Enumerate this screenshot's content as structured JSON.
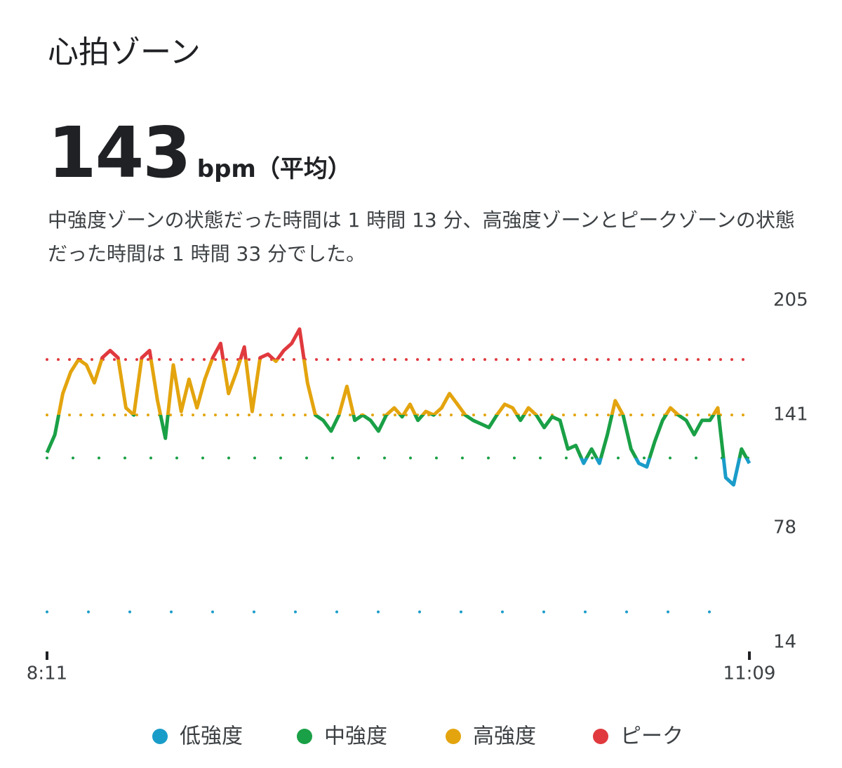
{
  "header": {
    "title": "心拍ゾーン",
    "value": "143",
    "unit": "bpm",
    "qualifier": "（平均）",
    "description": "中強度ゾーンの状態だった時間は 1 時間 13 分、高強度ゾーンとピークゾーンの状態だった時間は 1 時間 33 分でした。"
  },
  "chart_data": {
    "type": "line",
    "x": [
      "8:11",
      "8:13",
      "8:15",
      "8:17",
      "8:19",
      "8:21",
      "8:23",
      "8:25",
      "8:27",
      "8:29",
      "8:31",
      "8:33",
      "8:35",
      "8:37",
      "8:39",
      "8:41",
      "8:43",
      "8:45",
      "8:47",
      "8:49",
      "8:51",
      "8:53",
      "8:55",
      "8:57",
      "8:59",
      "9:01",
      "9:03",
      "9:05",
      "9:07",
      "9:09",
      "9:11",
      "9:13",
      "9:15",
      "9:17",
      "9:19",
      "9:21",
      "9:23",
      "9:25",
      "9:27",
      "9:29",
      "9:31",
      "9:33",
      "9:35",
      "9:37",
      "9:39",
      "9:41",
      "9:43",
      "9:45",
      "9:47",
      "9:49",
      "9:51",
      "9:53",
      "9:55",
      "9:57",
      "9:59",
      "10:01",
      "10:03",
      "10:05",
      "10:07",
      "10:09",
      "10:11",
      "10:13",
      "10:15",
      "10:17",
      "10:19",
      "10:21",
      "10:23",
      "10:25",
      "10:27",
      "10:29",
      "10:31",
      "10:33",
      "10:35",
      "10:37",
      "10:39",
      "10:41",
      "10:43",
      "10:45",
      "10:47",
      "10:49",
      "10:51",
      "10:53",
      "10:55",
      "10:57",
      "10:59",
      "11:01",
      "11:03",
      "11:05",
      "11:07",
      "11:09"
    ],
    "values": [
      120,
      130,
      153,
      165,
      172,
      169,
      159,
      173,
      177,
      173,
      145,
      141,
      173,
      177,
      149,
      128,
      169,
      143,
      161,
      145,
      161,
      173,
      181,
      153,
      165,
      179,
      143,
      173,
      175,
      171,
      177,
      181,
      189,
      159,
      141,
      138,
      132,
      141,
      157,
      138,
      141,
      138,
      132,
      141,
      145,
      140,
      147,
      138,
      143,
      141,
      145,
      153,
      147,
      141,
      138,
      136,
      134,
      141,
      147,
      145,
      138,
      145,
      141,
      134,
      140,
      138,
      122,
      124,
      114,
      122,
      114,
      130,
      149,
      141,
      122,
      114,
      112,
      126,
      138,
      145,
      141,
      138,
      130,
      138,
      138,
      145,
      106,
      102,
      122,
      114
    ],
    "xlim": [
      "8:11",
      "11:09"
    ],
    "xticks": [
      "8:11",
      "11:09"
    ],
    "ylim": [
      14,
      205
    ],
    "yticks": [
      205,
      141,
      78,
      14
    ],
    "zones": [
      {
        "name": "低強度",
        "color": "#1a9cc9",
        "threshold": 31
      },
      {
        "name": "中強度",
        "color": "#1aa046",
        "threshold": 117
      },
      {
        "name": "高強度",
        "color": "#e3a40e",
        "threshold": 141
      },
      {
        "name": "ピーク",
        "color": "#e0393e",
        "threshold": 172
      }
    ]
  }
}
